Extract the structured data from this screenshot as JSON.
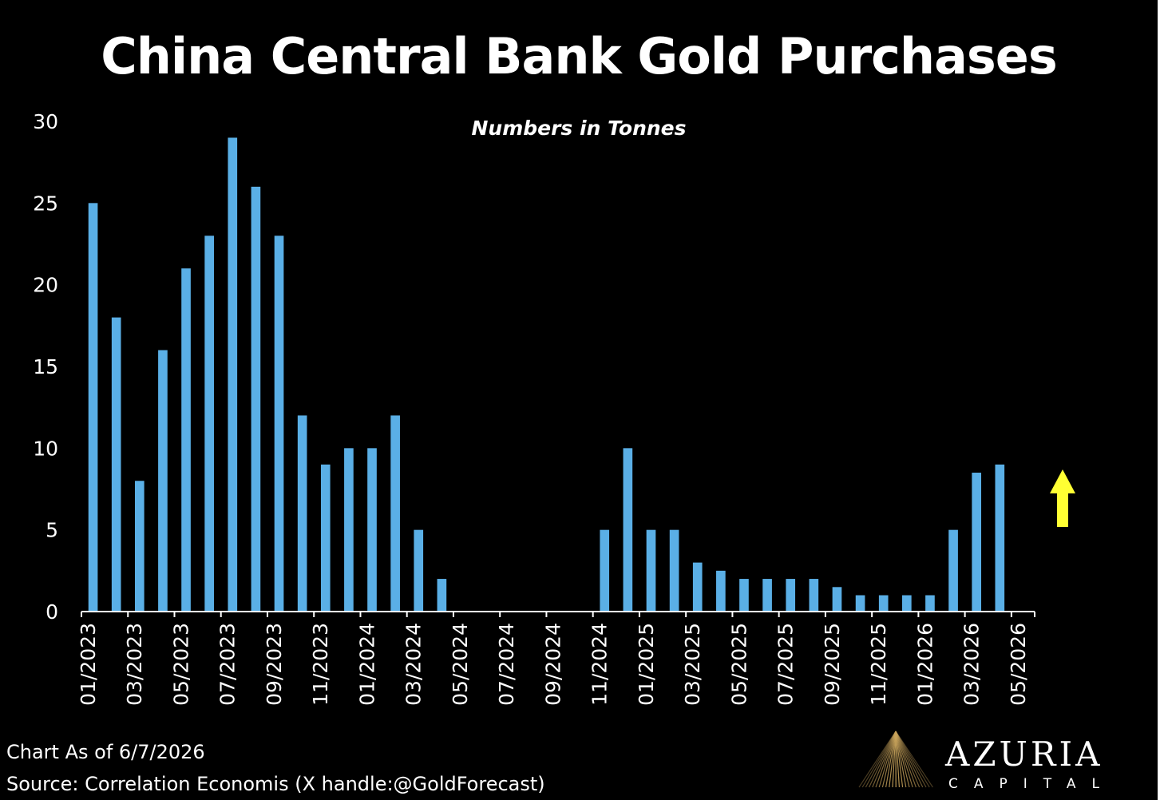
{
  "chart_data": {
    "type": "bar",
    "title": "China Central Bank Gold Purchases",
    "subtitle": "Numbers in Tonnes",
    "ylim": [
      0,
      30
    ],
    "yticks": [
      0,
      5,
      10,
      15,
      20,
      25,
      30
    ],
    "grid": false,
    "legend": false,
    "bar_color": "#5aafe6",
    "categories": [
      "01/2023",
      "02/2023",
      "03/2023",
      "04/2023",
      "05/2023",
      "06/2023",
      "07/2023",
      "08/2023",
      "09/2023",
      "10/2023",
      "11/2023",
      "12/2023",
      "01/2024",
      "02/2024",
      "03/2024",
      "04/2024",
      "05/2024",
      "06/2024",
      "07/2024",
      "08/2024",
      "09/2024",
      "10/2024",
      "11/2024",
      "12/2024",
      "01/2025",
      "02/2025",
      "03/2025",
      "04/2025",
      "05/2025",
      "06/2025",
      "07/2025",
      "08/2025",
      "09/2025",
      "10/2025",
      "11/2025",
      "12/2025",
      "01/2026",
      "02/2026",
      "03/2026",
      "04/2026",
      "05/2026"
    ],
    "values": [
      25,
      18,
      8,
      16,
      21,
      23,
      29,
      26,
      23,
      12,
      9,
      10,
      10,
      12,
      5,
      2,
      0,
      0,
      0,
      0,
      0,
      0,
      5,
      10,
      5,
      5,
      3,
      2.5,
      2,
      2,
      2,
      2,
      1.5,
      1,
      1,
      1,
      1,
      5,
      8.5,
      9,
      0
    ],
    "xtick_labels": [
      "01/2023",
      "03/2023",
      "05/2023",
      "07/2023",
      "09/2023",
      "11/2023",
      "01/2024",
      "03/2024",
      "05/2024",
      "07/2024",
      "09/2024",
      "11/2024",
      "01/2025",
      "03/2025",
      "05/2025",
      "07/2025",
      "09/2025",
      "11/2025",
      "01/2026",
      "03/2026",
      "05/2026"
    ],
    "annotations": [
      {
        "type": "arrow-up",
        "color": "#ffff33"
      }
    ]
  },
  "footer": {
    "as_of": "Chart As of 6/7/2026",
    "source": "Source: Correlation Economis (X handle:@GoldForecast)"
  },
  "logo": {
    "name": "AZURIA",
    "sub": "CAPITAL",
    "color": "#c9a45c"
  }
}
